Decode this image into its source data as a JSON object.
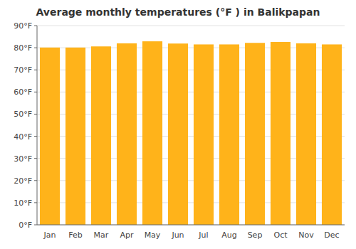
{
  "chart_data": {
    "type": "bar",
    "title": "Average monthly temperatures (°F ) in Balikpapan",
    "categories": [
      "Jan",
      "Feb",
      "Mar",
      "Apr",
      "May",
      "Jun",
      "Jul",
      "Aug",
      "Sep",
      "Oct",
      "Nov",
      "Dec"
    ],
    "values": [
      80.1,
      80.1,
      80.6,
      82.0,
      82.9,
      81.9,
      81.5,
      81.5,
      82.2,
      82.6,
      82.0,
      81.5
    ],
    "color": "#ffb31a",
    "ylim": [
      0,
      90
    ],
    "yticks": [
      {
        "value": 0,
        "label": "0°F"
      },
      {
        "value": 10,
        "label": "10°F"
      },
      {
        "value": 20,
        "label": "20°F"
      },
      {
        "value": 30,
        "label": "30°F"
      },
      {
        "value": 40,
        "label": "40°F"
      },
      {
        "value": 50,
        "label": "50°F"
      },
      {
        "value": 60,
        "label": "60°F"
      },
      {
        "value": 70,
        "label": "70°F"
      },
      {
        "value": 80,
        "label": "80°F"
      },
      {
        "value": 90,
        "label": "90°F"
      }
    ],
    "grid": true
  }
}
